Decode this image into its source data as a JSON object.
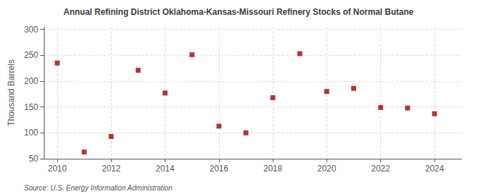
{
  "chart_data": {
    "type": "scatter",
    "title": "Annual Refining District Oklahoma-Kansas-Missouri Refinery Stocks of Normal Butane",
    "ylabel": "Thousand Barrels",
    "source": "Source: U.S. Energy Information Administration",
    "x": [
      2010,
      2011,
      2012,
      2013,
      2014,
      2015,
      2016,
      2017,
      2018,
      2019,
      2020,
      2021,
      2022,
      2023,
      2024
    ],
    "values": [
      235,
      63,
      93,
      221,
      177,
      251,
      113,
      100,
      168,
      253,
      180,
      186,
      149,
      148,
      137
    ],
    "color": "#aa0000",
    "marker": "square",
    "xlim": [
      2009.5,
      2025.0
    ],
    "ylim": [
      50,
      305
    ],
    "xticks": [
      2010,
      2012,
      2014,
      2016,
      2018,
      2020,
      2022,
      2024
    ],
    "yticks": [
      50,
      100,
      150,
      200,
      250,
      300
    ],
    "grid": true
  }
}
